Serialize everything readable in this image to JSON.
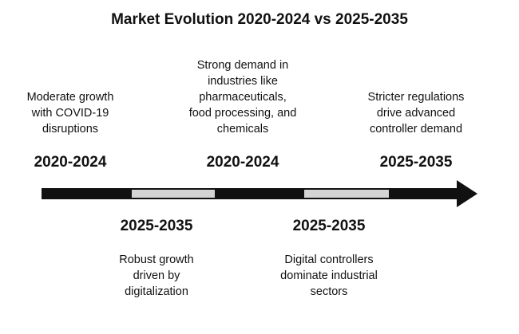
{
  "title": "Market Evolution 2020-2024 vs 2025-2035",
  "milestones": [
    {
      "period": "2020-2024",
      "description": [
        "Moderate growth",
        "with COVID-19",
        "disruptions"
      ]
    },
    {
      "period": "2025-2035",
      "description": [
        "Robust growth",
        "driven by",
        "digitalization"
      ]
    },
    {
      "period": "2020-2024",
      "description": [
        "Strong demand in",
        "industries like",
        "pharmaceuticals,",
        "food processing, and",
        "chemicals"
      ]
    },
    {
      "period": "2025-2035",
      "description": [
        "Digital controllers",
        "dominate industrial",
        "sectors"
      ]
    },
    {
      "period": "2025-2035",
      "description": [
        "Stricter regulations",
        "drive advanced",
        "controller demand"
      ]
    }
  ],
  "colors": {
    "arrow_dark": "#111111",
    "arrow_light": "#d4d4d4"
  }
}
